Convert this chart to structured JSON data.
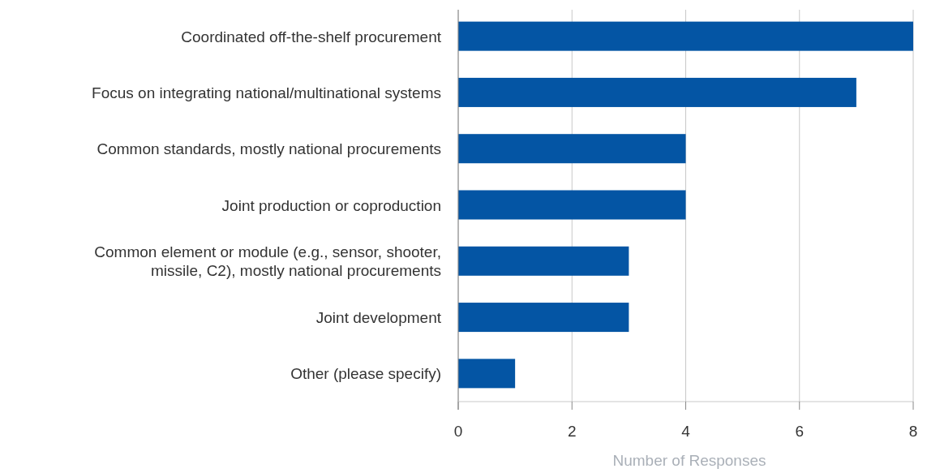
{
  "chart_data": {
    "type": "bar",
    "orientation": "horizontal",
    "xlabel": "Number of Responses",
    "categories": [
      "Coordinated off-the-shelf procurement",
      "Focus on integrating national/multinational systems",
      "Common standards, mostly national procurements",
      "Joint production or coproduction",
      "Common element or module (e.g., sensor, shooter, missile, C2), mostly national procurements",
      "Joint development",
      "Other (please specify)"
    ],
    "values": [
      8,
      7,
      4,
      4,
      3,
      3,
      1
    ],
    "color": "#0455a4",
    "xlim": [
      0,
      8
    ],
    "xticks": [
      0,
      2,
      4,
      6,
      8
    ],
    "grid": "x"
  }
}
